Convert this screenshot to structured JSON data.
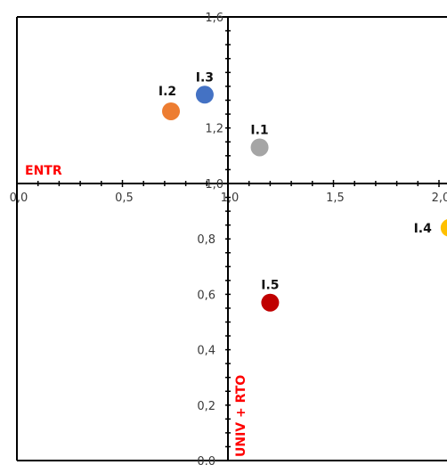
{
  "chart_data": {
    "type": "scatter",
    "title": "",
    "colors": {
      "axis_name": "#ff0000",
      "frame": "#000000"
    },
    "x_axis": {
      "min": 0.0,
      "max": 2.0,
      "ticks": [
        {
          "value": 0.0,
          "label": "0,0"
        },
        {
          "value": 0.5,
          "label": "0,5"
        },
        {
          "value": 1.0,
          "label": "1,0"
        },
        {
          "value": 1.5,
          "label": "1,5"
        },
        {
          "value": 2.0,
          "label": "2,0"
        }
      ]
    },
    "y_axis_upper": {
      "min": 1.0,
      "max": 1.6,
      "ticks": [
        {
          "value": 1.0,
          "label": "1,0"
        },
        {
          "value": 1.2,
          "label": "1,2"
        },
        {
          "value": 1.6,
          "label": "1,6"
        }
      ],
      "name": "ENTR"
    },
    "y_axis_lower": {
      "min": 0.0,
      "max": 1.0,
      "ticks": [
        {
          "value": 0.0,
          "label": "0,0"
        },
        {
          "value": 0.2,
          "label": "0,2"
        },
        {
          "value": 0.4,
          "label": "0,4"
        },
        {
          "value": 0.6,
          "label": "0,6"
        },
        {
          "value": 0.8,
          "label": "0,8"
        }
      ],
      "name": "UNIV + RTO"
    },
    "points": [
      {
        "label": "I.1",
        "x": 1.15,
        "y": 1.13,
        "panel": "upper",
        "color": "#a5a5a5"
      },
      {
        "label": "I.2",
        "x": 0.73,
        "y": 1.26,
        "panel": "upper",
        "color": "#ed7d31"
      },
      {
        "label": "I.3",
        "x": 0.89,
        "y": 1.32,
        "panel": "upper",
        "color": "#4472c4"
      },
      {
        "label": "I.4",
        "x": 2.05,
        "y": 0.84,
        "panel": "lower",
        "color": "#ffc000"
      },
      {
        "label": "I.5",
        "x": 1.2,
        "y": 0.57,
        "panel": "lower",
        "color": "#c00000"
      }
    ]
  }
}
